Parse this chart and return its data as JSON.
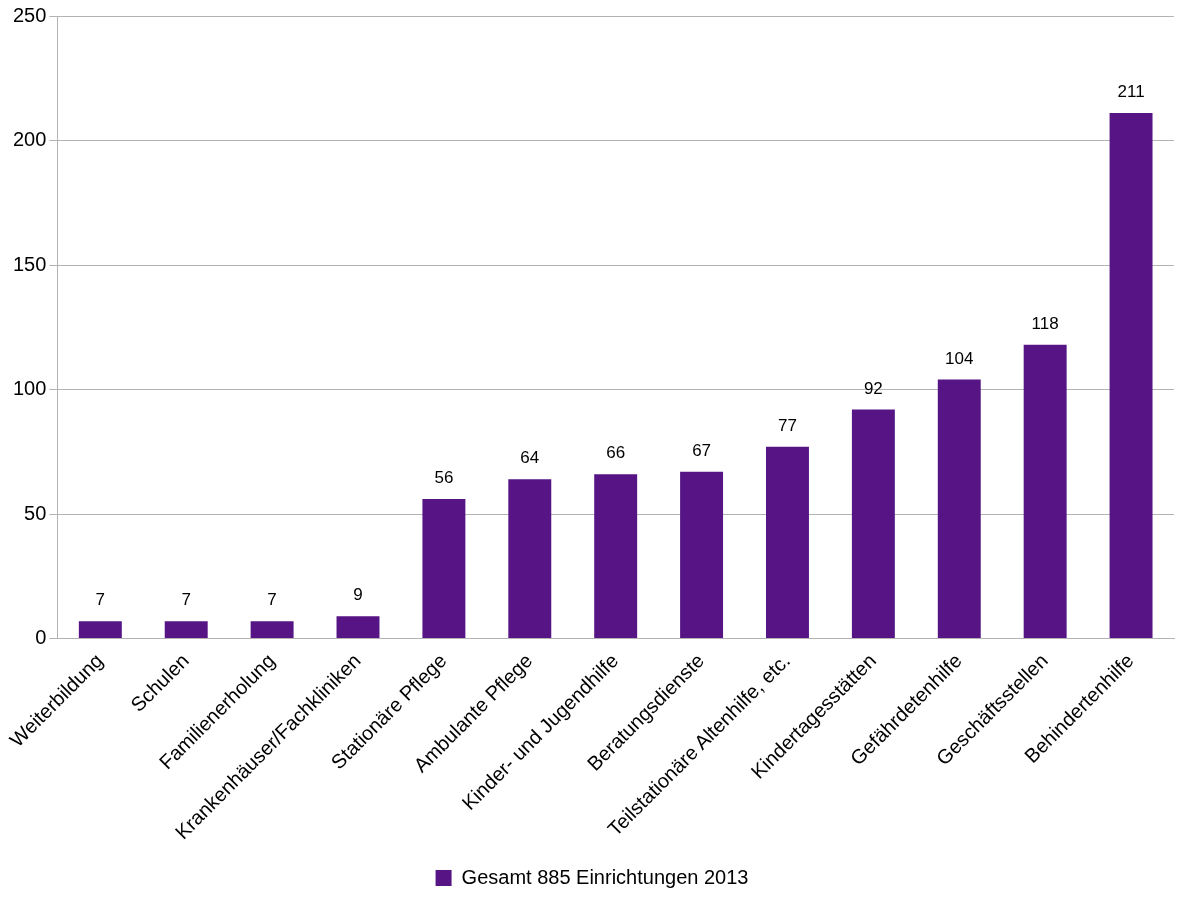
{
  "chart_data": {
    "type": "bar",
    "categories": [
      "Weiterbildung",
      "Schulen",
      "Familienerholung",
      "Krankenhäuser/Fachkliniken",
      "Stationäre Pflege",
      "Ambulante Pflege",
      "Kinder- und Jugendhilfe",
      "Beratungsdienste",
      "Teilstationäre Altenhilfe, etc.",
      "Kindertagesstätten",
      "Gefährdetenhilfe",
      "Geschäftsstellen",
      "Behindertenhilfe"
    ],
    "series": [
      {
        "name": "Gesamt 885 Einrichtungen 2013",
        "color": "#561485",
        "values": [
          7,
          7,
          7,
          9,
          56,
          64,
          66,
          67,
          77,
          92,
          104,
          118,
          211
        ]
      }
    ],
    "ylim": [
      0,
      250
    ],
    "yticks": [
      0,
      50,
      100,
      150,
      200,
      250
    ],
    "grid": "y",
    "legend": "bottom",
    "data_labels": true
  }
}
